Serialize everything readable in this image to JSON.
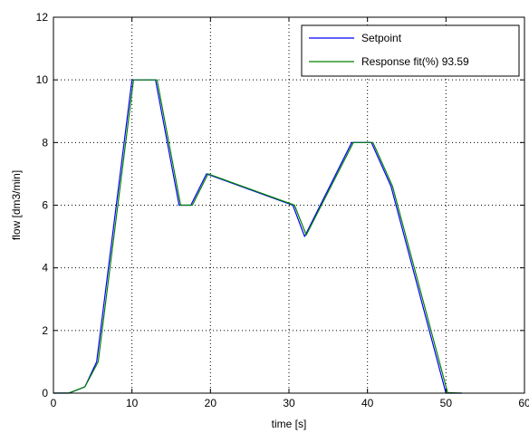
{
  "chart_data": {
    "type": "line",
    "title": "",
    "xlabel": "time [s]",
    "ylabel": "flow  [dm3/min]",
    "xlim": [
      0,
      60
    ],
    "ylim": [
      0,
      12
    ],
    "xticks": [
      0,
      10,
      20,
      30,
      40,
      50,
      60
    ],
    "yticks": [
      0,
      2,
      4,
      6,
      8,
      10,
      12
    ],
    "xtick_labels": [
      "0",
      "10",
      "20",
      "30",
      "40",
      "50",
      "60"
    ],
    "ytick_labels": [
      "0",
      "2",
      "4",
      "6",
      "8",
      "10",
      "12"
    ],
    "grid": true,
    "legend_position": "top-right",
    "series": [
      {
        "name": "Setpoint",
        "color": "#0000ff",
        "x": [
          0,
          2,
          4,
          5.5,
          7,
          10,
          13,
          14.5,
          16,
          17.5,
          19.5,
          30.5,
          32,
          38,
          40.5,
          43,
          50,
          52
        ],
        "y": [
          0,
          0,
          0.2,
          1,
          4,
          10,
          10,
          8,
          6,
          6,
          7,
          6,
          5,
          8,
          8,
          6.6,
          0,
          0
        ]
      },
      {
        "name": "Response  fit(%) 93.59",
        "color": "#008000",
        "x": [
          0,
          2,
          4,
          5.7,
          7.2,
          10.2,
          13.2,
          14.7,
          16.2,
          17.7,
          19.7,
          30.7,
          32.2,
          38.2,
          40.7,
          43.2,
          50.2,
          52
        ],
        "y": [
          0,
          0.01,
          0.2,
          1,
          4,
          10,
          10,
          8,
          6,
          6,
          7,
          6,
          5.05,
          8,
          8,
          6.6,
          0.02,
          0
        ]
      }
    ]
  }
}
